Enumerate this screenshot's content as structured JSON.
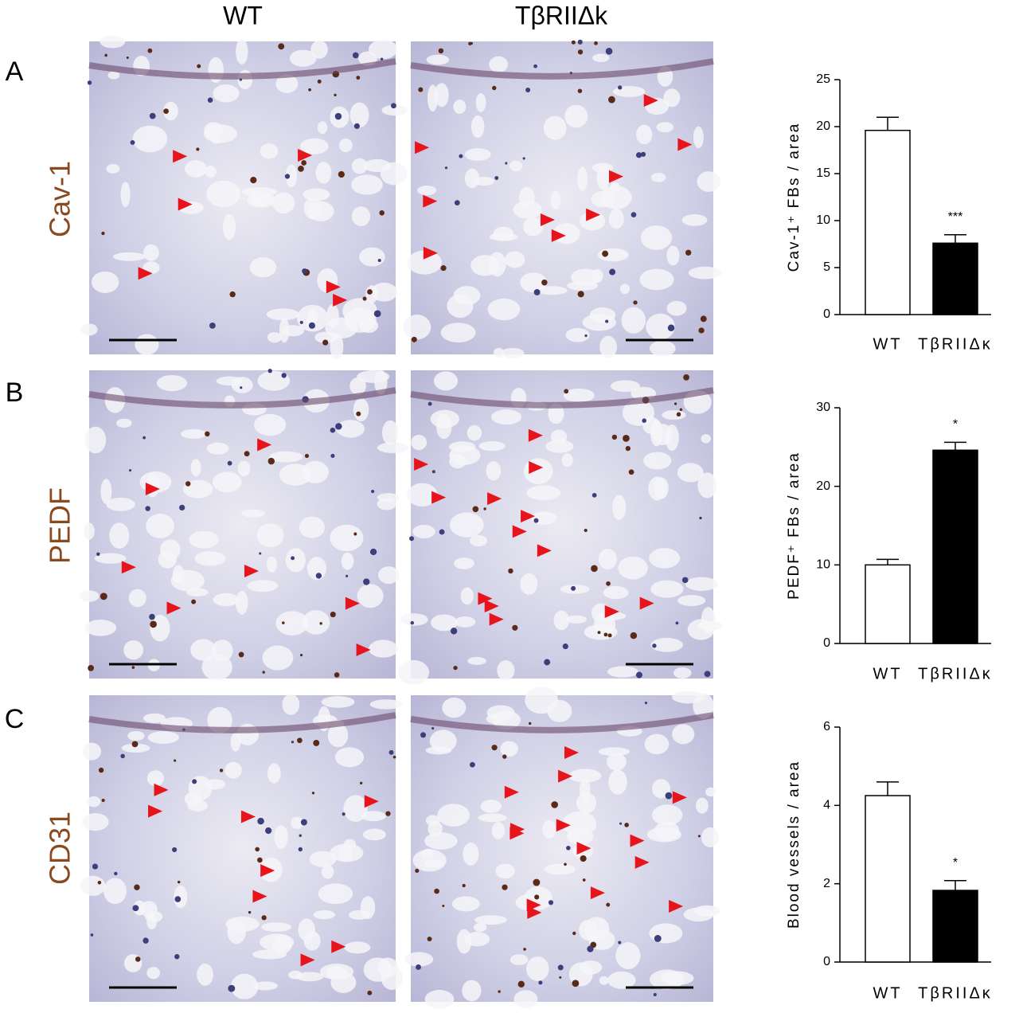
{
  "figure": {
    "columns": [
      "WT",
      "TβRIIΔk"
    ],
    "panels": [
      "A",
      "B",
      "C"
    ],
    "rows": [
      "Cav-1",
      "PEDF",
      "CD31"
    ]
  },
  "chart_data": [
    {
      "type": "bar",
      "ylabel": "Cav-1⁺ FBs / area",
      "categories": [
        "WT",
        "TβRIIΔκ"
      ],
      "values": [
        19.6,
        7.6
      ],
      "errors": [
        1.4,
        0.9
      ],
      "colors": [
        "#ffffff",
        "#000000"
      ],
      "annotations": [
        null,
        "***"
      ],
      "ylim": [
        0,
        25
      ],
      "yticks": [
        0,
        5,
        10,
        15,
        20,
        25
      ]
    },
    {
      "type": "bar",
      "ylabel": "PEDF⁺ FBs / area",
      "categories": [
        "WT",
        "TβRIIΔκ"
      ],
      "values": [
        10.0,
        24.6
      ],
      "errors": [
        0.7,
        1.0
      ],
      "colors": [
        "#ffffff",
        "#000000"
      ],
      "annotations": [
        null,
        "*"
      ],
      "ylim": [
        0,
        30
      ],
      "yticks": [
        0,
        10,
        20,
        30
      ]
    },
    {
      "type": "bar",
      "ylabel": "Blood vessels / area",
      "categories": [
        "WT",
        "TβRIIΔκ"
      ],
      "values": [
        4.25,
        1.83
      ],
      "errors": [
        0.35,
        0.25
      ],
      "colors": [
        "#ffffff",
        "#000000"
      ],
      "annotations": [
        null,
        "*"
      ],
      "ylim": [
        0,
        6
      ],
      "yticks": [
        0,
        2,
        4,
        6
      ]
    }
  ]
}
